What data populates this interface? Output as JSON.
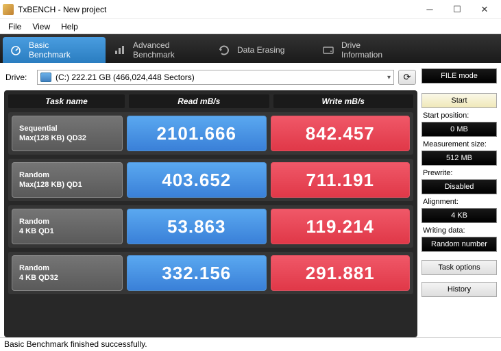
{
  "window": {
    "title": "TxBENCH - New project"
  },
  "menu": {
    "file": "File",
    "view": "View",
    "help": "Help"
  },
  "tabs": {
    "basic": "Basic\nBenchmark",
    "advanced": "Advanced\nBenchmark",
    "erasing": "Data Erasing",
    "driveinfo": "Drive\nInformation"
  },
  "drive": {
    "label": "Drive:",
    "value": "(C:)   222.21 GB (466,024,448 Sectors)"
  },
  "headers": {
    "task": "Task name",
    "read": "Read mB/s",
    "write": "Write mB/s"
  },
  "rows": [
    {
      "name1": "Sequential",
      "name2": "Max(128 KB) QD32",
      "read": "2101.666",
      "write": "842.457"
    },
    {
      "name1": "Random",
      "name2": "Max(128 KB) QD1",
      "read": "403.652",
      "write": "711.191"
    },
    {
      "name1": "Random",
      "name2": "4 KB QD1",
      "read": "53.863",
      "write": "119.214"
    },
    {
      "name1": "Random",
      "name2": "4 KB QD32",
      "read": "332.156",
      "write": "291.881"
    }
  ],
  "side": {
    "filemode": "FILE mode",
    "start": "Start",
    "startpos_label": "Start position:",
    "startpos": "0 MB",
    "meassize_label": "Measurement size:",
    "meassize": "512 MB",
    "prewrite_label": "Prewrite:",
    "prewrite": "Disabled",
    "alignment_label": "Alignment:",
    "alignment": "4 KB",
    "writingdata_label": "Writing data:",
    "writingdata": "Random number",
    "taskoptions": "Task options",
    "history": "History"
  },
  "status": "Basic Benchmark finished successfully."
}
